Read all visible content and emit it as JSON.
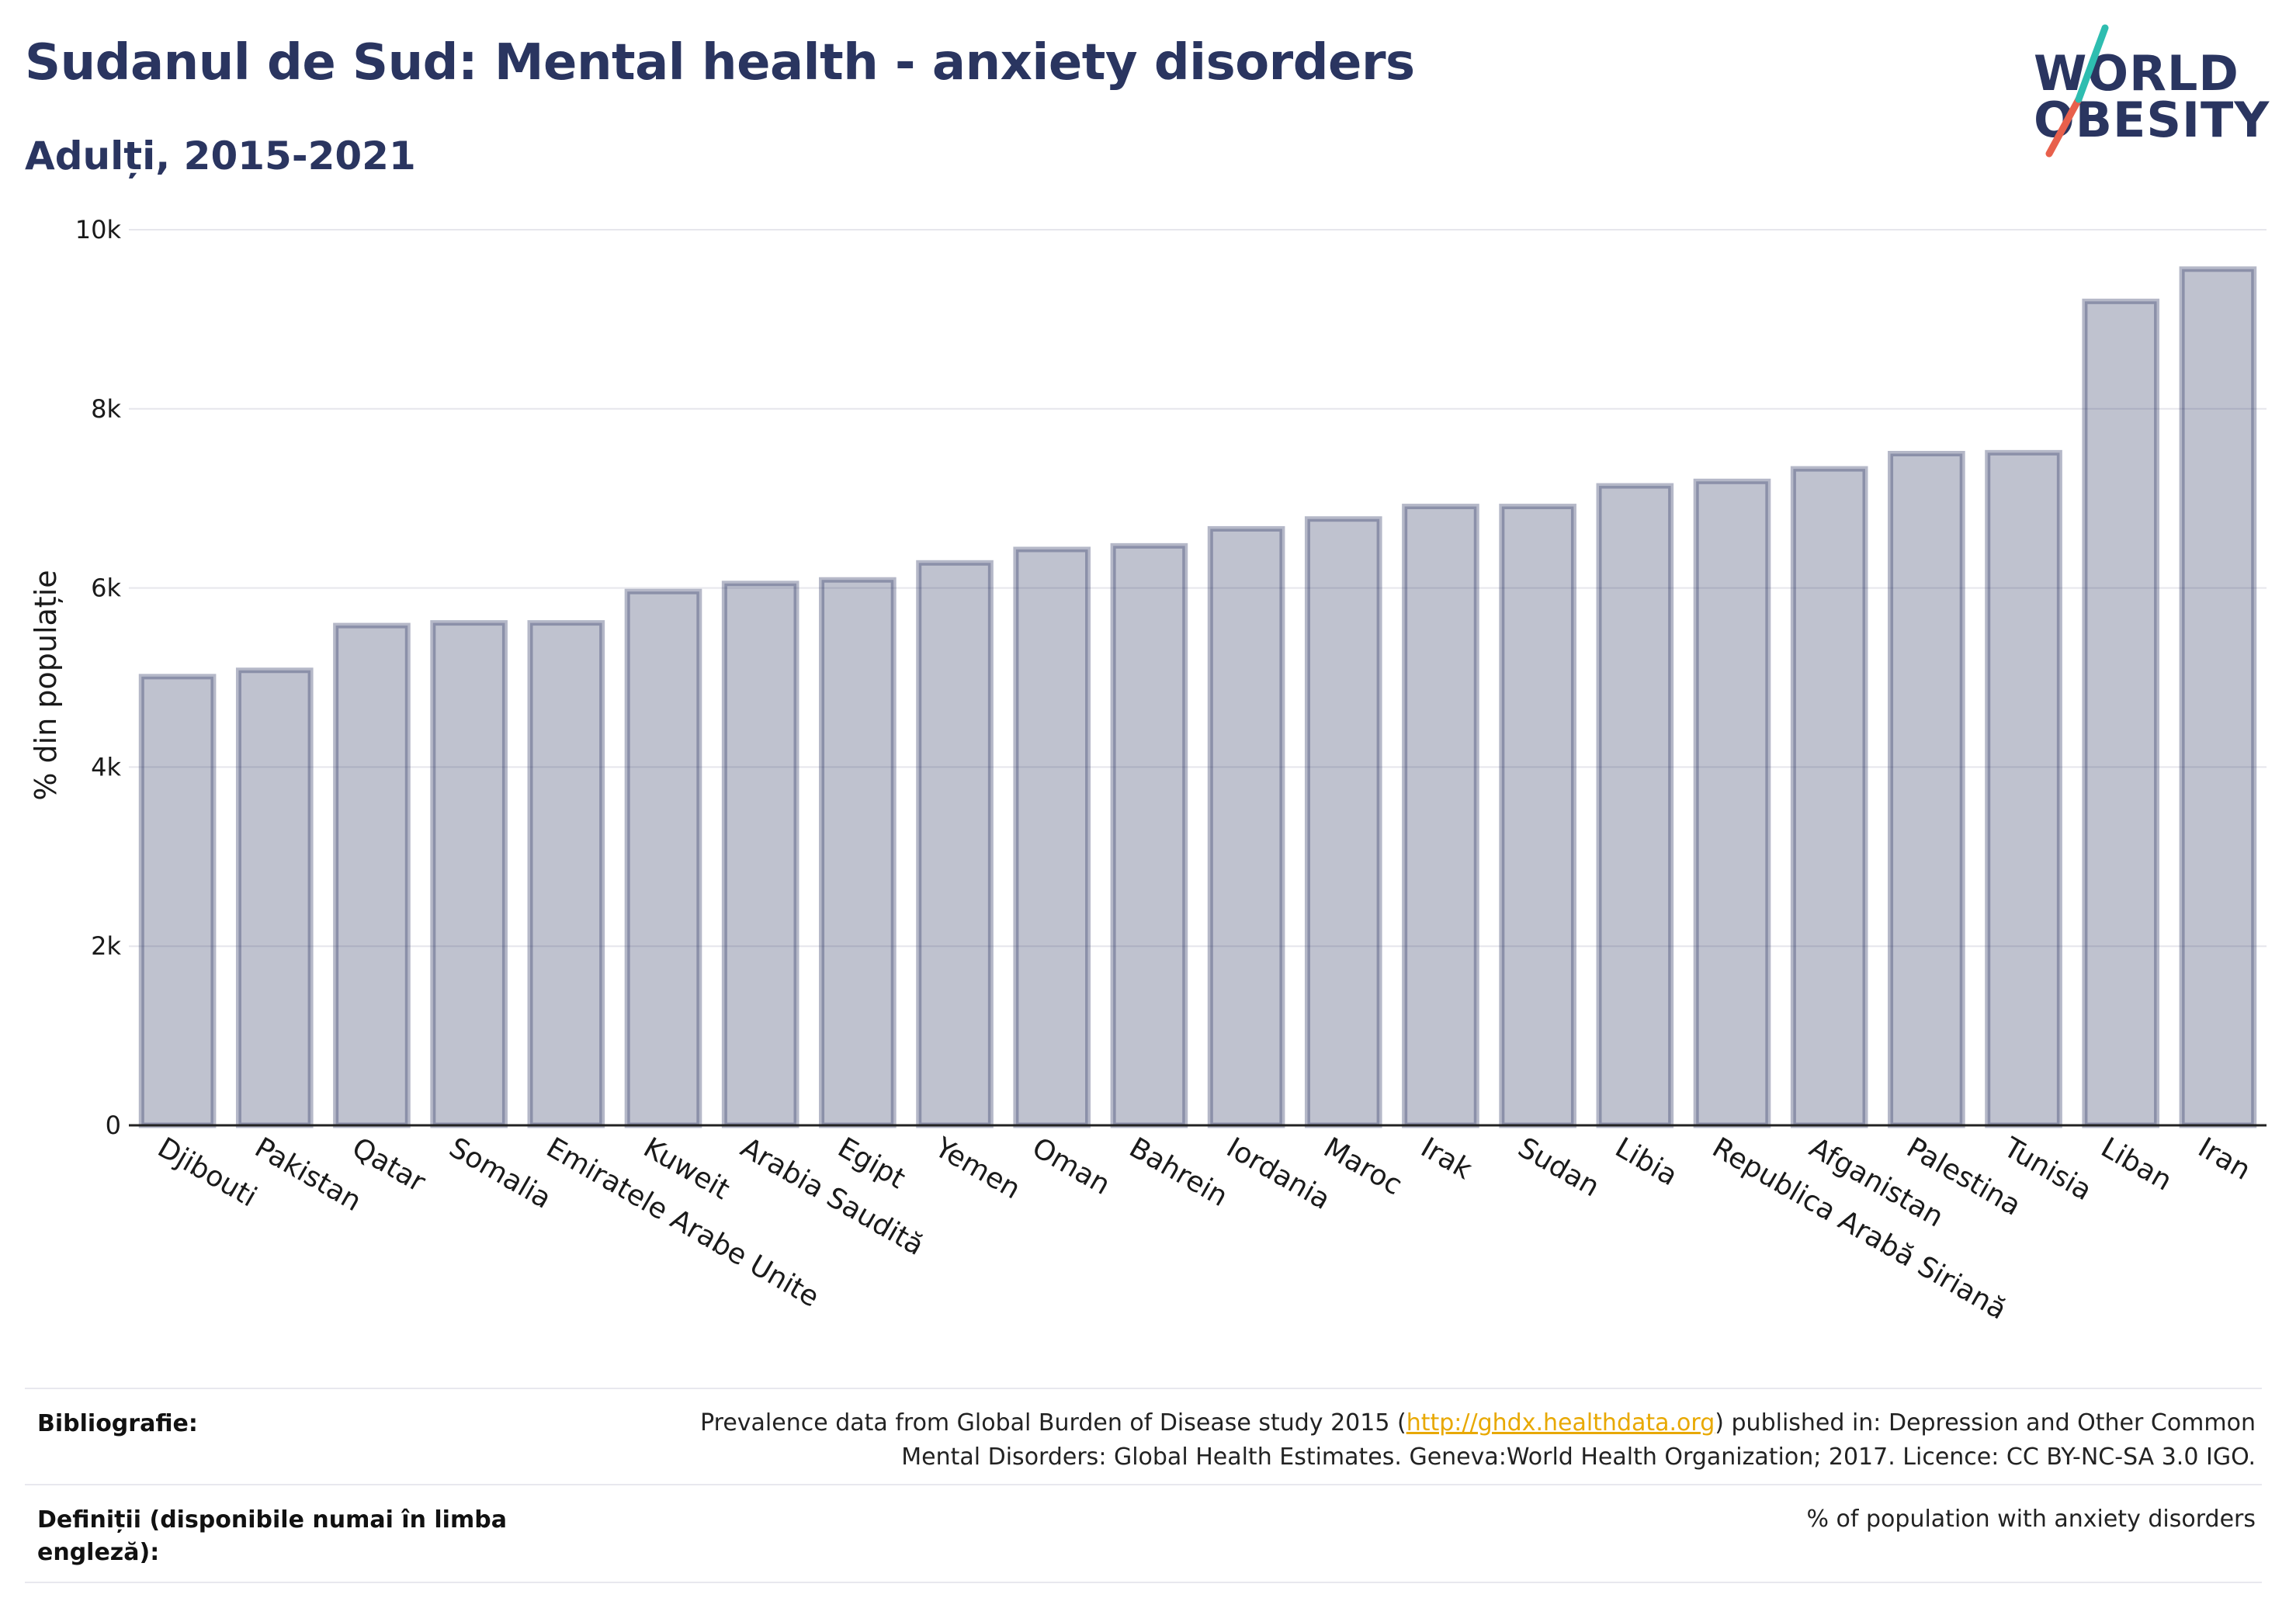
{
  "header": {
    "title": "Sudanul de Sud: Mental health - anxiety disorders",
    "subtitle": "Adulți, 2015-2021"
  },
  "logo": {
    "line1": "WORLD",
    "line2": "OBESITY",
    "colors": {
      "text": "#2a3560",
      "teal": "#2ebdb0",
      "red": "#e8604c"
    }
  },
  "chart_data": {
    "type": "bar",
    "ylabel": "% din populație",
    "xlabel": "",
    "ylim": [
      0,
      10000
    ],
    "yticks": [
      0,
      2000,
      4000,
      6000,
      8000,
      10000
    ],
    "ytick_labels": [
      "0",
      "2k",
      "4k",
      "6k",
      "8k",
      "10k"
    ],
    "grid": true,
    "bar_color": "#2a3560",
    "categories": [
      "Djibouti",
      "Pakistan",
      "Qatar",
      "Somalia",
      "Emiratele Arabe Unite",
      "Kuweit",
      "Arabia Saudită",
      "Egipt",
      "Yemen",
      "Oman",
      "Bahrein",
      "Iordania",
      "Maroc",
      "Irak",
      "Sudan",
      "Libia",
      "Republica Arabă Siriană",
      "Afganistan",
      "Palestina",
      "Tunisia",
      "Liban",
      "Iran"
    ],
    "values": [
      5010,
      5080,
      5580,
      5610,
      5610,
      5960,
      6050,
      6090,
      6280,
      6430,
      6470,
      6660,
      6770,
      6910,
      6910,
      7140,
      7190,
      7330,
      7500,
      7510,
      9200,
      9560
    ]
  },
  "footer": {
    "bibliography_label": "Bibliografie:",
    "bibliography_before": "Prevalence data from Global Burden of Disease study 2015 (",
    "bibliography_link": "http://ghdx.healthdata.org",
    "bibliography_after": ") published in: Depression and Other Common",
    "bibliography_line2": "Mental Disorders: Global Health Estimates. Geneva:World Health Organization; 2017. Licence: CC BY-NC-SA 3.0 IGO.",
    "definitions_label": "Definiții (disponibile numai în limba engleză):",
    "definitions_text": "% of population with anxiety disorders"
  }
}
